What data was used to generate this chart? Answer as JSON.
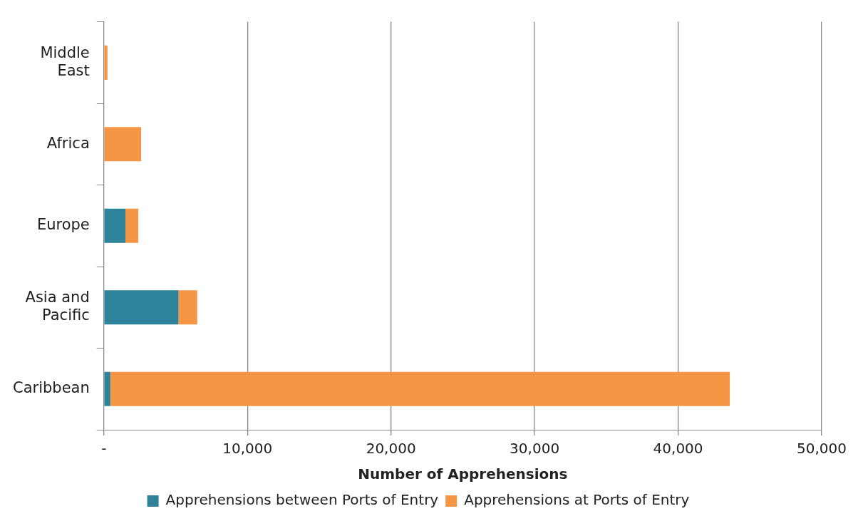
{
  "chart_data": {
    "type": "bar",
    "orientation": "horizontal",
    "stacked": true,
    "categories": [
      "Middle East",
      "Africa",
      "Europe",
      "Asia and Pacific",
      "Caribbean"
    ],
    "series": [
      {
        "name": "Apprehensions between Ports of Entry",
        "color": "#2e8299",
        "values": [
          0,
          0,
          1500,
          5200,
          450
        ]
      },
      {
        "name": "Apprehensions at Ports of Entry",
        "color": "#f59646",
        "values": [
          250,
          2600,
          900,
          1300,
          43150
        ]
      }
    ],
    "xlabel": "Number of Apprehensions",
    "xlim": [
      0,
      50000
    ],
    "xticks": [
      {
        "value": 0,
        "label": "-"
      },
      {
        "value": 10000,
        "label": "10,000"
      },
      {
        "value": 20000,
        "label": "20,000"
      },
      {
        "value": 30000,
        "label": "30,000"
      },
      {
        "value": 40000,
        "label": "40,000"
      },
      {
        "value": 50000,
        "label": "50,000"
      }
    ],
    "grid": "x",
    "legend": "bottom"
  }
}
